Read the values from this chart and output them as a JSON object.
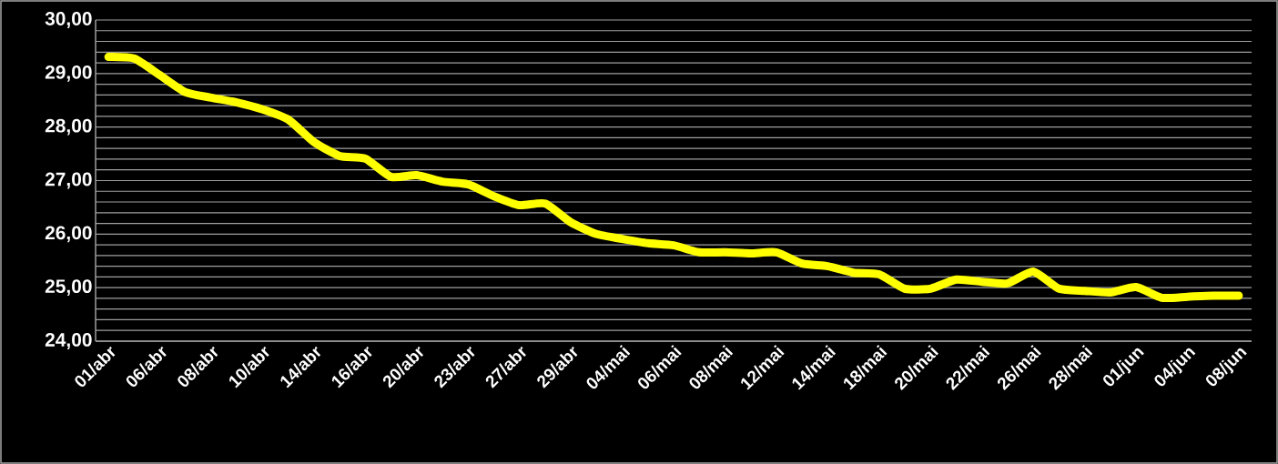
{
  "chart_data": {
    "type": "line",
    "categories": [
      "01/abr",
      null,
      "06/abr",
      null,
      "08/abr",
      null,
      "10/abr",
      null,
      "14/abr",
      null,
      "16/abr",
      null,
      "20/abr",
      null,
      "23/abr",
      null,
      "27/abr",
      null,
      "29/abr",
      null,
      "04/mai",
      null,
      "06/mai",
      null,
      "08/mai",
      null,
      "12/mai",
      null,
      "14/mai",
      null,
      "18/mai",
      null,
      "20/mai",
      null,
      "22/mai",
      null,
      "26/mai",
      null,
      "28/mai",
      null,
      "01/jun",
      null,
      "04/jun",
      null,
      "08/jun"
    ],
    "series": [
      {
        "color": "#ffff00",
        "values": [
          29.31,
          29.28,
          28.97,
          28.65,
          28.55,
          28.46,
          28.33,
          28.14,
          27.72,
          27.46,
          27.41,
          27.07,
          27.1,
          26.98,
          26.93,
          26.71,
          26.54,
          26.57,
          26.22,
          26.0,
          25.91,
          25.83,
          25.79,
          25.66,
          25.66,
          25.64,
          25.66,
          25.45,
          25.4,
          25.28,
          25.25,
          24.98,
          24.98,
          25.15,
          25.11,
          25.08,
          25.3,
          24.98,
          24.94,
          24.91,
          25.01,
          24.81,
          24.83,
          24.85,
          24.85
        ]
      }
    ],
    "ylim": [
      24,
      30
    ],
    "yticks": [
      {
        "value": 24,
        "label": "24,00"
      },
      {
        "value": 25,
        "label": "25,00"
      },
      {
        "value": 26,
        "label": "26,00"
      },
      {
        "value": 27,
        "label": "27,00"
      },
      {
        "value": 28,
        "label": "28,00"
      },
      {
        "value": 29,
        "label": "29,00"
      },
      {
        "value": 30,
        "label": "30,00"
      }
    ],
    "grid": "y",
    "marker": "none",
    "line_style": "solid"
  }
}
